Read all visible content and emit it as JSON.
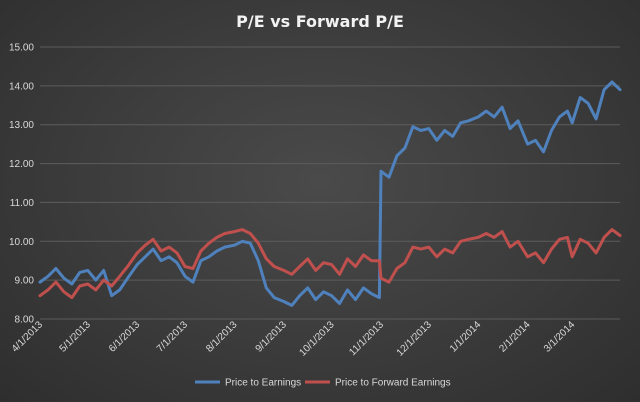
{
  "chart_data": {
    "type": "line",
    "title": "P/E vs Forward P/E",
    "xlabel": "",
    "ylabel": "",
    "ylim": [
      8.0,
      15.0
    ],
    "y_ticks": [
      "15.00",
      "14.00",
      "13.00",
      "12.00",
      "11.00",
      "10.00",
      "9.00",
      "8.00"
    ],
    "y_tick_values": [
      15,
      14,
      13,
      12,
      11,
      10,
      9,
      8
    ],
    "x_tick_labels": [
      "4/1/2013",
      "5/1/2013",
      "6/1/2013",
      "7/1/2013",
      "8/1/2013",
      "9/1/2013",
      "10/1/2013",
      "11/1/2013",
      "12/1/2013",
      "1/1/2014",
      "2/1/2014",
      "3/1/2014"
    ],
    "x_tick_dates": [
      "2013-04-01",
      "2013-05-01",
      "2013-06-01",
      "2013-07-01",
      "2013-08-01",
      "2013-09-01",
      "2013-10-01",
      "2013-11-01",
      "2013-12-01",
      "2014-01-01",
      "2014-02-01",
      "2014-03-01"
    ],
    "x_range": [
      "2013-04-01",
      "2014-03-31"
    ],
    "grid": "horizontal",
    "legend_position": "bottom",
    "series": [
      {
        "name": "Price to Earnings",
        "color": "#4f81bd",
        "points": [
          [
            "2013-04-01",
            8.95
          ],
          [
            "2013-04-06",
            9.1
          ],
          [
            "2013-04-11",
            9.3
          ],
          [
            "2013-04-16",
            9.05
          ],
          [
            "2013-04-21",
            8.9
          ],
          [
            "2013-04-26",
            9.2
          ],
          [
            "2013-05-01",
            9.25
          ],
          [
            "2013-05-06",
            9.0
          ],
          [
            "2013-05-11",
            9.25
          ],
          [
            "2013-05-16",
            8.6
          ],
          [
            "2013-05-21",
            8.75
          ],
          [
            "2013-05-26",
            9.05
          ],
          [
            "2013-06-01",
            9.4
          ],
          [
            "2013-06-06",
            9.6
          ],
          [
            "2013-06-11",
            9.8
          ],
          [
            "2013-06-16",
            9.5
          ],
          [
            "2013-06-21",
            9.6
          ],
          [
            "2013-06-26",
            9.45
          ],
          [
            "2013-07-01",
            9.1
          ],
          [
            "2013-07-06",
            8.95
          ],
          [
            "2013-07-11",
            9.5
          ],
          [
            "2013-07-16",
            9.6
          ],
          [
            "2013-07-21",
            9.75
          ],
          [
            "2013-07-26",
            9.85
          ],
          [
            "2013-08-01",
            9.9
          ],
          [
            "2013-08-06",
            10.0
          ],
          [
            "2013-08-11",
            9.95
          ],
          [
            "2013-08-16",
            9.5
          ],
          [
            "2013-08-21",
            8.8
          ],
          [
            "2013-08-26",
            8.55
          ],
          [
            "2013-09-01",
            8.45
          ],
          [
            "2013-09-06",
            8.35
          ],
          [
            "2013-09-11",
            8.6
          ],
          [
            "2013-09-16",
            8.8
          ],
          [
            "2013-09-21",
            8.5
          ],
          [
            "2013-09-26",
            8.7
          ],
          [
            "2013-10-01",
            8.6
          ],
          [
            "2013-10-06",
            8.4
          ],
          [
            "2013-10-11",
            8.75
          ],
          [
            "2013-10-16",
            8.5
          ],
          [
            "2013-10-21",
            8.8
          ],
          [
            "2013-10-26",
            8.65
          ],
          [
            "2013-10-31",
            8.55
          ],
          [
            "2013-11-01",
            11.8
          ],
          [
            "2013-11-06",
            11.65
          ],
          [
            "2013-11-11",
            12.2
          ],
          [
            "2013-11-16",
            12.4
          ],
          [
            "2013-11-21",
            12.95
          ],
          [
            "2013-11-26",
            12.85
          ],
          [
            "2013-12-01",
            12.9
          ],
          [
            "2013-12-06",
            12.6
          ],
          [
            "2013-12-11",
            12.85
          ],
          [
            "2013-12-16",
            12.7
          ],
          [
            "2013-12-21",
            13.05
          ],
          [
            "2013-12-26",
            13.1
          ],
          [
            "2014-01-01",
            13.2
          ],
          [
            "2014-01-06",
            13.35
          ],
          [
            "2014-01-11",
            13.2
          ],
          [
            "2014-01-16",
            13.45
          ],
          [
            "2014-01-21",
            12.9
          ],
          [
            "2014-01-26",
            13.1
          ],
          [
            "2014-02-01",
            12.5
          ],
          [
            "2014-02-06",
            12.6
          ],
          [
            "2014-02-11",
            12.3
          ],
          [
            "2014-02-16",
            12.85
          ],
          [
            "2014-02-21",
            13.2
          ],
          [
            "2014-02-26",
            13.35
          ],
          [
            "2014-03-01",
            13.05
          ],
          [
            "2014-03-06",
            13.7
          ],
          [
            "2014-03-11",
            13.55
          ],
          [
            "2014-03-16",
            13.15
          ],
          [
            "2014-03-21",
            13.9
          ],
          [
            "2014-03-26",
            14.1
          ],
          [
            "2014-03-31",
            13.9
          ]
        ]
      },
      {
        "name": "Price to Forward Earnings",
        "color": "#c0504d",
        "points": [
          [
            "2013-04-01",
            8.6
          ],
          [
            "2013-04-06",
            8.75
          ],
          [
            "2013-04-11",
            8.95
          ],
          [
            "2013-04-16",
            8.7
          ],
          [
            "2013-04-21",
            8.55
          ],
          [
            "2013-04-26",
            8.85
          ],
          [
            "2013-05-01",
            8.9
          ],
          [
            "2013-05-06",
            8.75
          ],
          [
            "2013-05-11",
            9.0
          ],
          [
            "2013-05-16",
            8.85
          ],
          [
            "2013-05-21",
            9.1
          ],
          [
            "2013-05-26",
            9.35
          ],
          [
            "2013-06-01",
            9.7
          ],
          [
            "2013-06-06",
            9.9
          ],
          [
            "2013-06-11",
            10.05
          ],
          [
            "2013-06-16",
            9.75
          ],
          [
            "2013-06-21",
            9.85
          ],
          [
            "2013-06-26",
            9.7
          ],
          [
            "2013-07-01",
            9.35
          ],
          [
            "2013-07-06",
            9.3
          ],
          [
            "2013-07-11",
            9.75
          ],
          [
            "2013-07-16",
            9.95
          ],
          [
            "2013-07-21",
            10.1
          ],
          [
            "2013-07-26",
            10.2
          ],
          [
            "2013-08-01",
            10.25
          ],
          [
            "2013-08-06",
            10.3
          ],
          [
            "2013-08-11",
            10.2
          ],
          [
            "2013-08-16",
            9.95
          ],
          [
            "2013-08-21",
            9.55
          ],
          [
            "2013-08-26",
            9.35
          ],
          [
            "2013-09-01",
            9.25
          ],
          [
            "2013-09-06",
            9.15
          ],
          [
            "2013-09-11",
            9.35
          ],
          [
            "2013-09-16",
            9.55
          ],
          [
            "2013-09-21",
            9.25
          ],
          [
            "2013-09-26",
            9.45
          ],
          [
            "2013-10-01",
            9.4
          ],
          [
            "2013-10-06",
            9.15
          ],
          [
            "2013-10-11",
            9.55
          ],
          [
            "2013-10-16",
            9.35
          ],
          [
            "2013-10-21",
            9.65
          ],
          [
            "2013-10-26",
            9.5
          ],
          [
            "2013-10-31",
            9.5
          ],
          [
            "2013-11-01",
            9.05
          ],
          [
            "2013-11-06",
            8.95
          ],
          [
            "2013-11-11",
            9.3
          ],
          [
            "2013-11-16",
            9.45
          ],
          [
            "2013-11-21",
            9.85
          ],
          [
            "2013-11-26",
            9.8
          ],
          [
            "2013-12-01",
            9.85
          ],
          [
            "2013-12-06",
            9.6
          ],
          [
            "2013-12-11",
            9.8
          ],
          [
            "2013-12-16",
            9.7
          ],
          [
            "2013-12-21",
            10.0
          ],
          [
            "2013-12-26",
            10.05
          ],
          [
            "2014-01-01",
            10.1
          ],
          [
            "2014-01-06",
            10.2
          ],
          [
            "2014-01-11",
            10.1
          ],
          [
            "2014-01-16",
            10.25
          ],
          [
            "2014-01-21",
            9.85
          ],
          [
            "2014-01-26",
            10.0
          ],
          [
            "2014-02-01",
            9.6
          ],
          [
            "2014-02-06",
            9.7
          ],
          [
            "2014-02-11",
            9.45
          ],
          [
            "2014-02-16",
            9.8
          ],
          [
            "2014-02-21",
            10.05
          ],
          [
            "2014-02-26",
            10.1
          ],
          [
            "2014-03-01",
            9.6
          ],
          [
            "2014-03-06",
            10.05
          ],
          [
            "2014-03-11",
            9.95
          ],
          [
            "2014-03-16",
            9.7
          ],
          [
            "2014-03-21",
            10.1
          ],
          [
            "2014-03-26",
            10.3
          ],
          [
            "2014-03-31",
            10.15
          ]
        ]
      }
    ]
  }
}
